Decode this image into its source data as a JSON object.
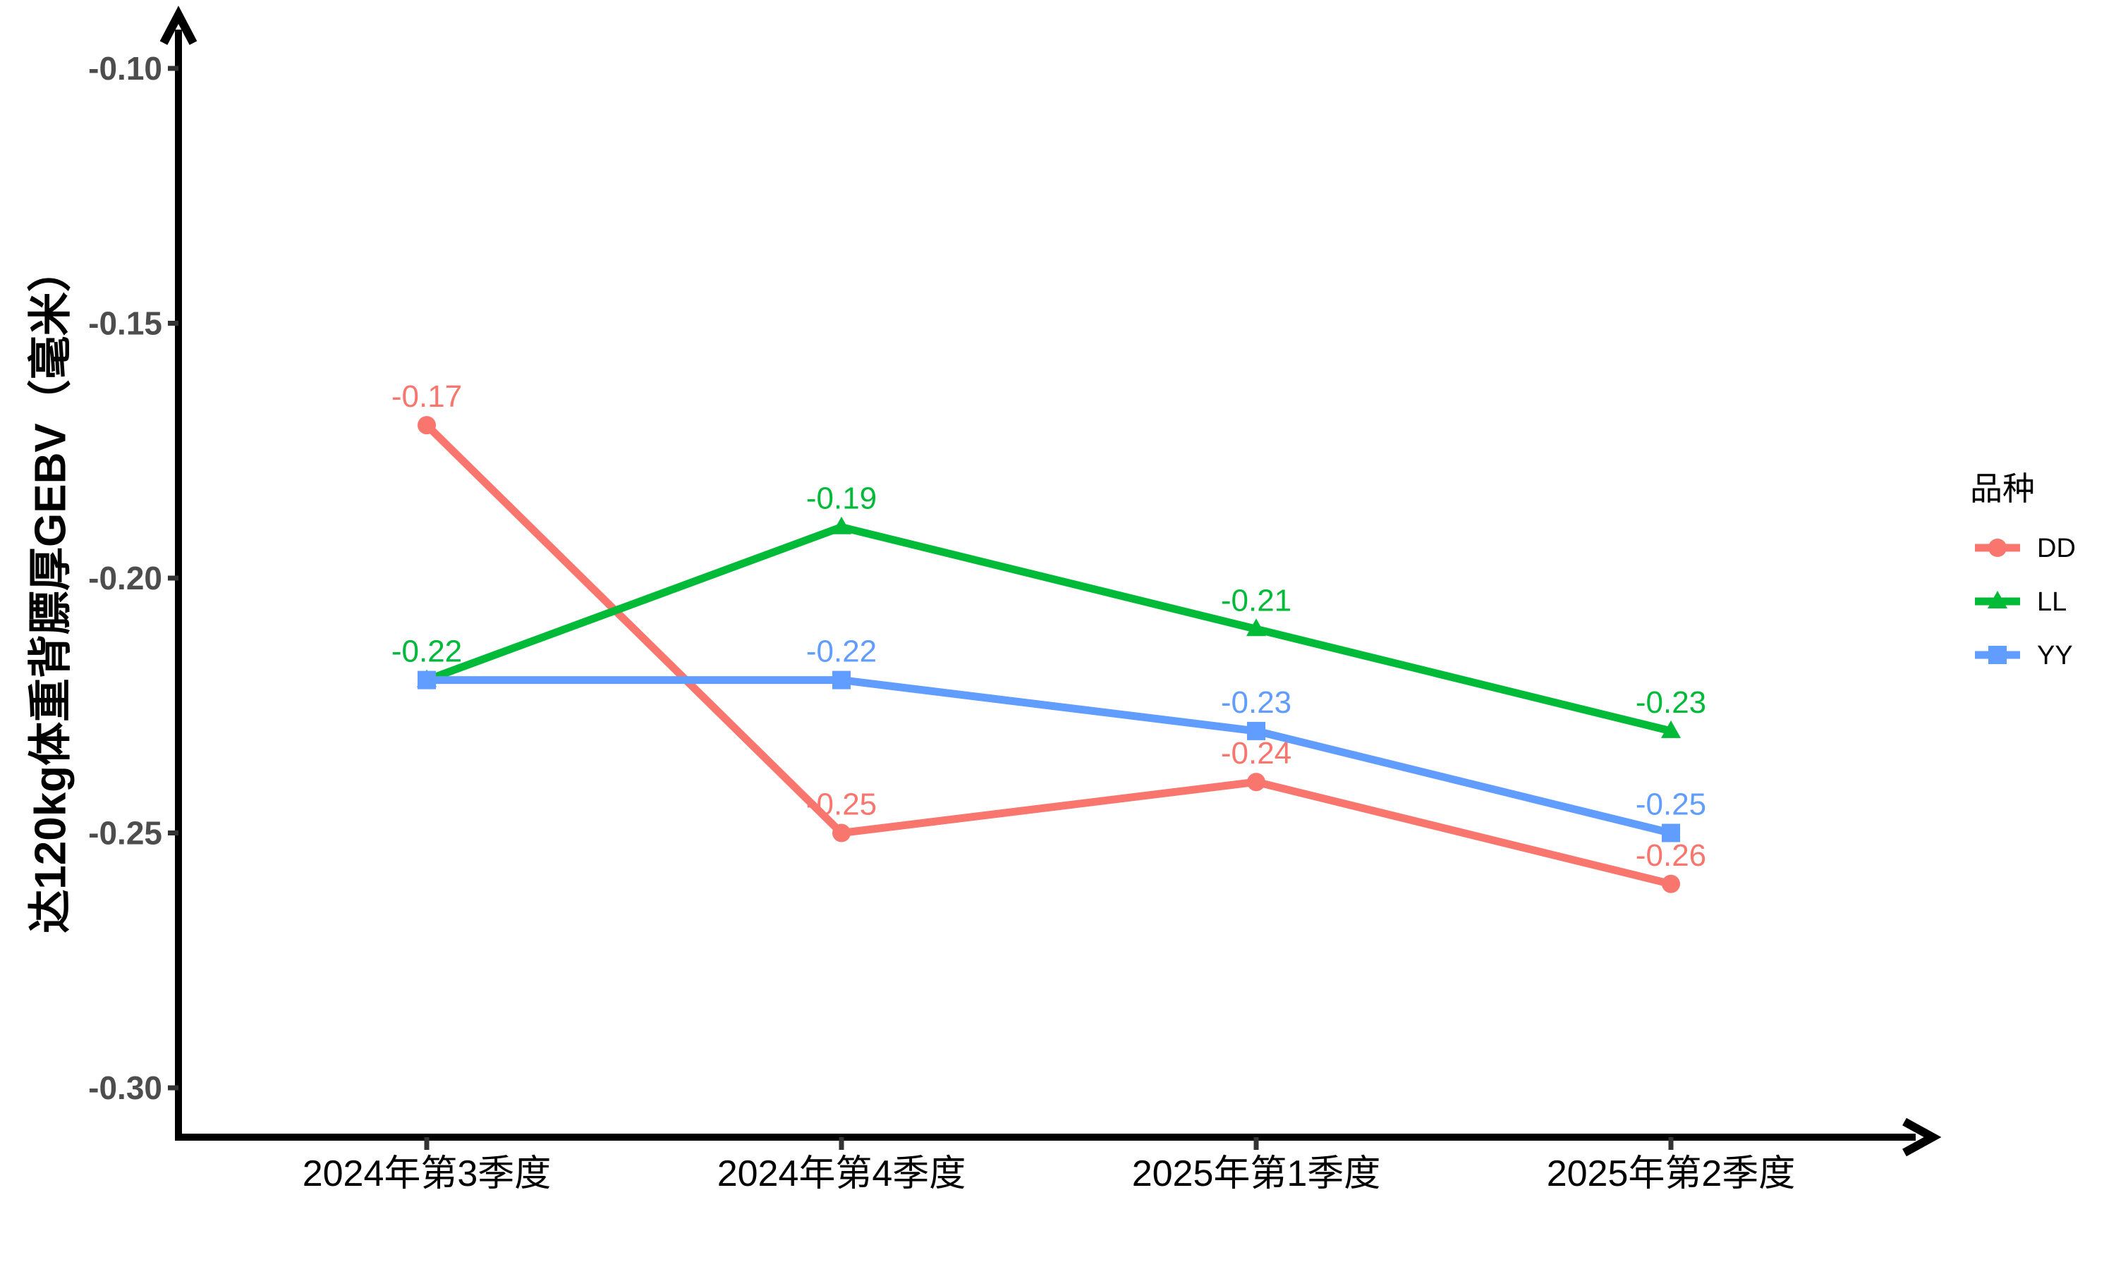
{
  "chart_data": {
    "type": "line",
    "title": "",
    "categories": [
      "2024年第3季度",
      "2024年第4季度",
      "2025年第1季度",
      "2025年第2季度"
    ],
    "series": [
      {
        "name": "DD",
        "color": "#F8766D",
        "marker": "circle",
        "values": [
          -0.17,
          -0.25,
          -0.24,
          -0.26
        ],
        "labels": [
          "-0.17",
          "-0.25",
          "-0.24",
          "-0.26"
        ]
      },
      {
        "name": "LL",
        "color": "#00BA38",
        "marker": "triangle",
        "values": [
          -0.22,
          -0.19,
          -0.21,
          -0.23
        ],
        "labels": [
          "-0.22",
          "-0.19",
          "-0.21",
          "-0.23"
        ]
      },
      {
        "name": "YY",
        "color": "#619CFF",
        "marker": "square",
        "values": [
          -0.22,
          -0.22,
          -0.23,
          -0.25
        ],
        "labels": [
          "-0.22",
          "-0.22",
          "-0.23",
          "-0.25"
        ]
      }
    ],
    "xlabel": "",
    "ylabel": "达120kg体重背膘厚GEBV（毫米）",
    "y_tick_labels": [
      "-0.10",
      "-0.15",
      "-0.20",
      "-0.25",
      "-0.30"
    ],
    "y_tick_values": [
      -0.1,
      -0.15,
      -0.2,
      -0.25,
      -0.3
    ],
    "ylim": [
      -0.3,
      -0.1
    ],
    "grid": false,
    "legend": {
      "title": "品种",
      "position": "right",
      "entries": [
        "DD",
        "LL",
        "YY"
      ]
    }
  },
  "colors": {
    "background": "#FFFFFF",
    "axis_line": "#000000",
    "tick_mark": "#333333",
    "y_tick_text": "#4D4D4D",
    "x_tick_text": "#000000",
    "series_dd": "#F8766D",
    "series_ll": "#00BA38",
    "series_yy": "#619CFF"
  }
}
